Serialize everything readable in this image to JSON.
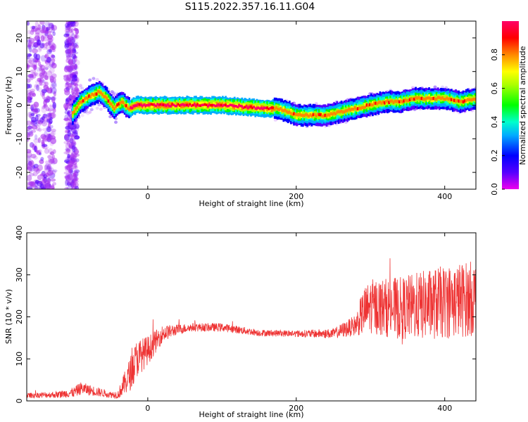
{
  "figure": {
    "title": "S115.2022.357.16.11.G04"
  },
  "chart_data": [
    {
      "type": "heatmap",
      "title": "S115.2022.357.16.11.G04",
      "xlabel": "Height of straight line (km)",
      "ylabel": "Frequency (Hz)",
      "xlim": [
        -163,
        442
      ],
      "ylim": [
        -25,
        25
      ],
      "x_ticks": [
        "0",
        "200",
        "400"
      ],
      "y_ticks": [
        "-20",
        "-10",
        "0",
        "10",
        "20"
      ],
      "grid": false,
      "colorbar": {
        "label": "Normalized spectral amplitude",
        "range": [
          0.0,
          1.0
        ],
        "ticks": [
          "0.0",
          "0.2",
          "0.4",
          "0.6",
          "0.8"
        ],
        "colormap": [
          "#ee00ee",
          "#5500ff",
          "#0000ff",
          "#00aaff",
          "#00ffcc",
          "#00ff00",
          "#aaff00",
          "#ffff00",
          "#ff8800",
          "#ff0000",
          "#ff0066"
        ]
      },
      "ridge": {
        "x": [
          -163,
          -140,
          -110,
          -100,
          -90,
          -75,
          -65,
          -55,
          -45,
          -35,
          -25,
          -15,
          0,
          50,
          100,
          160,
          175,
          190,
          200,
          220,
          240,
          260,
          280,
          300,
          320,
          340,
          360,
          380,
          400,
          420,
          442
        ],
        "y": [
          -8,
          -9,
          -7,
          -2,
          1,
          3,
          4,
          2,
          -1,
          1,
          -1,
          0,
          0,
          0,
          0,
          -1,
          -1,
          -2,
          -3,
          -3,
          -3,
          -2,
          -1,
          0,
          1,
          1,
          2,
          2,
          2,
          1,
          2
        ]
      }
    },
    {
      "type": "line",
      "xlabel": "Height of straight line (km)",
      "ylabel": "SNR (10 * v/v)",
      "xlim": [
        -163,
        442
      ],
      "ylim": [
        0,
        400
      ],
      "x_ticks": [
        "0",
        "200",
        "400"
      ],
      "y_ticks": [
        "0",
        "100",
        "200",
        "300",
        "400"
      ],
      "grid": false,
      "series_color": "#ee3333",
      "envelope": {
        "x": [
          -163,
          -120,
          -100,
          -90,
          -50,
          -40,
          -30,
          -25,
          -15,
          0,
          20,
          40,
          60,
          100,
          150,
          200,
          250,
          280,
          290,
          300,
          340,
          380,
          420,
          442
        ],
        "mean": [
          13,
          15,
          20,
          30,
          15,
          15,
          45,
          60,
          100,
          120,
          160,
          170,
          175,
          175,
          162,
          160,
          160,
          180,
          210,
          225,
          220,
          230,
          240,
          245
        ],
        "spread": [
          6,
          8,
          12,
          15,
          8,
          10,
          30,
          40,
          45,
          35,
          20,
          12,
          10,
          10,
          8,
          8,
          12,
          25,
          55,
          65,
          75,
          85,
          90,
          90
        ]
      }
    }
  ]
}
